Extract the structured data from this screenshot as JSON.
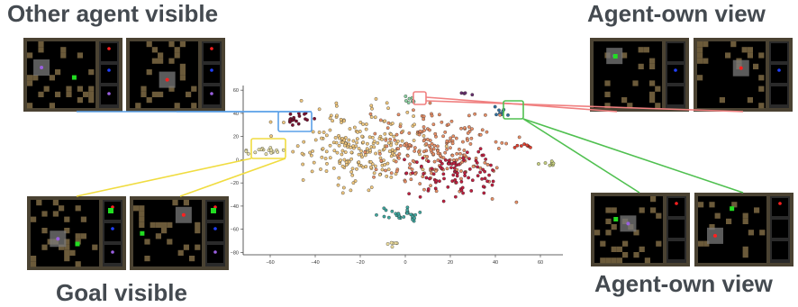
{
  "labels": {
    "top_left": "Other agent visible",
    "top_right": "Agent-own view",
    "bottom_left": "Goal visible",
    "bottom_right": "Agent-own view"
  },
  "colors": {
    "grid_bg": "#000000",
    "wall": "#6b5a3a",
    "frame": "#4a4232",
    "view": "#7a7a7a",
    "goal": "#22dd22",
    "agent_red": "#ff2020",
    "agent_blue": "#2040ff",
    "agent_purple": "#9a60e0",
    "highlight_blue": "#5aa0e8",
    "highlight_yellow": "#f0dc40",
    "highlight_red": "#f08080",
    "highlight_green": "#50c050"
  },
  "chart_data": {
    "type": "scatter",
    "x_ticks": [
      "−60",
      "−40",
      "−20",
      "0",
      "20",
      "40",
      "60"
    ],
    "y_ticks": [
      "60",
      "40",
      "20",
      "0",
      "−20",
      "−40",
      "−60",
      "−80"
    ],
    "xlim": [
      -72,
      70
    ],
    "ylim": [
      -82,
      64
    ],
    "clusters": [
      {
        "color": "#7a1030",
        "cx": -48,
        "cy": 35,
        "sx": 4,
        "sy": 3,
        "n": 18
      },
      {
        "color": "#e8e0a8",
        "cx": -62,
        "cy": 8,
        "sx": 6,
        "sy": 2,
        "n": 18
      },
      {
        "color": "#8ad0a0",
        "cx": 2,
        "cy": 51,
        "sx": 1.5,
        "sy": 1.5,
        "n": 8
      },
      {
        "color": "#6a3070",
        "cx": 26,
        "cy": 57,
        "sx": 1.5,
        "sy": 1,
        "n": 4
      },
      {
        "color": "#3070a0",
        "cx": 42,
        "cy": 42,
        "sx": 2,
        "sy": 2,
        "n": 8
      },
      {
        "color": "#e04030",
        "cx": 53,
        "cy": 12,
        "sx": 2,
        "sy": 1.5,
        "n": 8
      },
      {
        "color": "#c8d080",
        "cx": 64,
        "cy": -4,
        "sx": 2.5,
        "sy": 1.5,
        "n": 8
      },
      {
        "color": "#f0c880",
        "cx": -22,
        "cy": 10,
        "sx": 14,
        "sy": 18,
        "n": 220
      },
      {
        "color": "#e89068",
        "cx": 14,
        "cy": 8,
        "sx": 14,
        "sy": 16,
        "n": 200
      },
      {
        "color": "#c02040",
        "cx": 22,
        "cy": -10,
        "sx": 10,
        "sy": 10,
        "n": 90
      },
      {
        "color": "#40a8a0",
        "cx": 0,
        "cy": -48,
        "sx": 5,
        "sy": 3,
        "n": 30
      },
      {
        "color": "#f0e0a0",
        "cx": -6,
        "cy": -73,
        "sx": 1.2,
        "sy": 1,
        "n": 6
      }
    ]
  }
}
